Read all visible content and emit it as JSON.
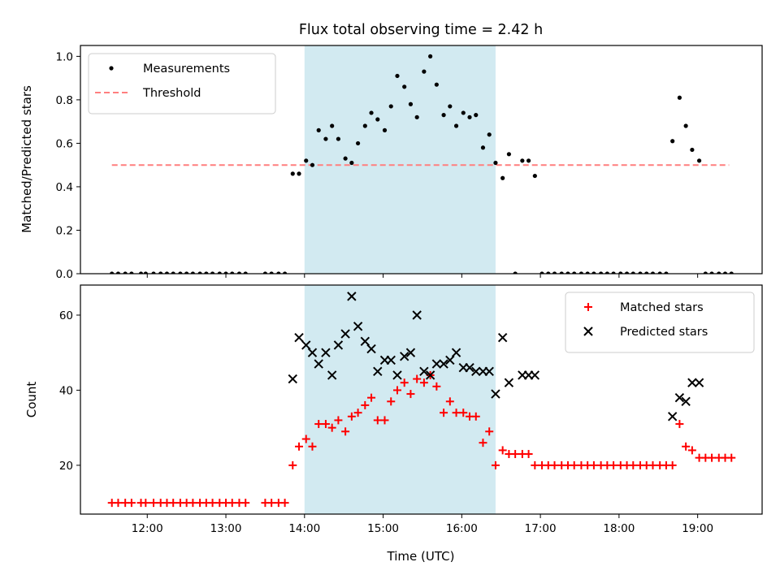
{
  "chart_data": [
    {
      "type": "scatter",
      "title": "Flux total observing time = 2.42 h",
      "xlabel": "",
      "ylabel": "Matched/Predicted stars",
      "xlim": [
        11.15,
        19.82
      ],
      "ylim": [
        0.0,
        1.05
      ],
      "yticks": [
        0.0,
        0.2,
        0.4,
        0.6,
        0.8,
        1.0
      ],
      "ytick_labels": [
        "0.0",
        "0.2",
        "0.4",
        "0.6",
        "0.8",
        "1.0"
      ],
      "xticks": [
        12,
        13,
        14,
        15,
        16,
        17,
        18,
        19
      ],
      "shaded_region": [
        14.0,
        16.43
      ],
      "shaded_color": "#add8e6",
      "threshold": {
        "y": 0.5,
        "x_range": [
          11.55,
          19.4
        ],
        "color": "#ff7f7f"
      },
      "legend": {
        "position": "upper left",
        "entries": [
          "Measurements",
          "Threshold"
        ]
      },
      "series": [
        {
          "name": "Measurements",
          "color": "#000000",
          "marker": "dot",
          "x": [
            11.55,
            11.63,
            11.72,
            11.8,
            11.92,
            11.98,
            12.08,
            12.17,
            12.25,
            12.33,
            12.42,
            12.5,
            12.58,
            12.67,
            12.75,
            12.83,
            12.92,
            13.0,
            13.08,
            13.17,
            13.25,
            13.5,
            13.58,
            13.67,
            13.75,
            13.85,
            13.93,
            14.02,
            14.1,
            14.18,
            14.27,
            14.35,
            14.43,
            14.52,
            14.6,
            14.68,
            14.77,
            14.85,
            14.93,
            15.02,
            15.1,
            15.18,
            15.27,
            15.35,
            15.43,
            15.52,
            15.6,
            15.68,
            15.77,
            15.85,
            15.93,
            16.02,
            16.1,
            16.18,
            16.27,
            16.35,
            16.43,
            16.52,
            16.6,
            16.68,
            16.77,
            16.85,
            16.93,
            17.02,
            17.1,
            17.18,
            17.27,
            17.35,
            17.43,
            17.52,
            17.6,
            17.68,
            17.77,
            17.85,
            17.93,
            18.02,
            18.1,
            18.18,
            18.27,
            18.35,
            18.43,
            18.52,
            18.6,
            18.68,
            18.77,
            18.85,
            18.93,
            19.02,
            19.1,
            19.18,
            19.27,
            19.35,
            19.43
          ],
          "y": [
            0.0,
            0.0,
            0.0,
            0.0,
            0.0,
            0.0,
            0.0,
            0.0,
            0.0,
            0.0,
            0.0,
            0.0,
            0.0,
            0.0,
            0.0,
            0.0,
            0.0,
            0.0,
            0.0,
            0.0,
            0.0,
            0.0,
            0.0,
            0.0,
            0.0,
            0.46,
            0.46,
            0.52,
            0.5,
            0.66,
            0.62,
            0.68,
            0.62,
            0.53,
            0.51,
            0.6,
            0.68,
            0.74,
            0.71,
            0.66,
            0.77,
            0.91,
            0.86,
            0.78,
            0.72,
            0.93,
            1.0,
            0.87,
            0.73,
            0.77,
            0.68,
            0.74,
            0.72,
            0.73,
            0.58,
            0.64,
            0.51,
            0.44,
            0.55,
            0.0,
            0.52,
            0.52,
            0.45,
            0.0,
            0.0,
            0.0,
            0.0,
            0.0,
            0.0,
            0.0,
            0.0,
            0.0,
            0.0,
            0.0,
            0.0,
            0.0,
            0.0,
            0.0,
            0.0,
            0.0,
            0.0,
            0.0,
            0.0,
            0.61,
            0.81,
            0.68,
            0.57,
            0.52,
            0.0,
            0.0,
            0.0,
            0.0,
            0.0
          ]
        }
      ]
    },
    {
      "type": "scatter",
      "title": "",
      "xlabel": "Time (UTC)",
      "ylabel": "Count",
      "xlim": [
        11.15,
        19.82
      ],
      "ylim": [
        7.0,
        68.0
      ],
      "yticks": [
        20,
        40,
        60
      ],
      "ytick_labels": [
        "20",
        "40",
        "60"
      ],
      "xticks": [
        12,
        13,
        14,
        15,
        16,
        17,
        18,
        19
      ],
      "xtick_labels": [
        "12:00",
        "13:00",
        "14:00",
        "15:00",
        "16:00",
        "17:00",
        "18:00",
        "19:00"
      ],
      "shaded_region": [
        14.0,
        16.43
      ],
      "shaded_color": "#add8e6",
      "legend": {
        "position": "upper right",
        "entries": [
          "Matched stars",
          "Predicted stars"
        ]
      },
      "series": [
        {
          "name": "Matched stars",
          "color": "#ff0000",
          "marker": "plus",
          "x": [
            11.55,
            11.63,
            11.72,
            11.8,
            11.92,
            11.98,
            12.08,
            12.17,
            12.25,
            12.33,
            12.42,
            12.5,
            12.58,
            12.67,
            12.75,
            12.83,
            12.92,
            13.0,
            13.08,
            13.17,
            13.25,
            13.5,
            13.58,
            13.67,
            13.75,
            13.85,
            13.93,
            14.02,
            14.1,
            14.18,
            14.27,
            14.35,
            14.43,
            14.52,
            14.6,
            14.68,
            14.77,
            14.85,
            14.93,
            15.02,
            15.1,
            15.18,
            15.27,
            15.35,
            15.43,
            15.52,
            15.6,
            15.68,
            15.77,
            15.85,
            15.93,
            16.02,
            16.1,
            16.18,
            16.27,
            16.35,
            16.43,
            16.52,
            16.6,
            16.68,
            16.77,
            16.85,
            16.93,
            17.02,
            17.1,
            17.18,
            17.27,
            17.35,
            17.43,
            17.52,
            17.6,
            17.68,
            17.77,
            17.85,
            17.93,
            18.02,
            18.1,
            18.18,
            18.27,
            18.35,
            18.43,
            18.52,
            18.6,
            18.68,
            18.77,
            18.85,
            18.93,
            19.02,
            19.1,
            19.18,
            19.27,
            19.35,
            19.43
          ],
          "y": [
            10,
            10,
            10,
            10,
            10,
            10,
            10,
            10,
            10,
            10,
            10,
            10,
            10,
            10,
            10,
            10,
            10,
            10,
            10,
            10,
            10,
            10,
            10,
            10,
            10,
            20,
            25,
            27,
            25,
            31,
            31,
            30,
            32,
            29,
            33,
            34,
            36,
            38,
            32,
            32,
            37,
            40,
            42,
            39,
            43,
            42,
            44,
            41,
            34,
            37,
            34,
            34,
            33,
            33,
            26,
            29,
            20,
            24,
            23,
            23,
            23,
            23,
            20,
            20,
            20,
            20,
            20,
            20,
            20,
            20,
            20,
            20,
            20,
            20,
            20,
            20,
            20,
            20,
            20,
            20,
            20,
            20,
            20,
            20,
            31,
            25,
            24,
            22,
            22,
            22,
            22,
            22,
            22
          ]
        },
        {
          "name": "Predicted stars",
          "color": "#000000",
          "marker": "x",
          "x": [
            13.85,
            13.93,
            14.02,
            14.1,
            14.18,
            14.27,
            14.35,
            14.43,
            14.52,
            14.6,
            14.68,
            14.77,
            14.85,
            14.93,
            15.02,
            15.1,
            15.18,
            15.27,
            15.35,
            15.43,
            15.52,
            15.6,
            15.68,
            15.77,
            15.85,
            15.93,
            16.02,
            16.1,
            16.18,
            16.27,
            16.35,
            16.43,
            16.52,
            16.6,
            16.77,
            16.85,
            16.93,
            18.68,
            18.77,
            18.85,
            18.93,
            19.02
          ],
          "y": [
            43,
            54,
            52,
            50,
            47,
            50,
            44,
            52,
            55,
            65,
            57,
            53,
            51,
            45,
            48,
            48,
            44,
            49,
            50,
            60,
            45,
            44,
            47,
            47,
            48,
            50,
            46,
            46,
            45,
            45,
            45,
            39,
            54,
            42,
            44,
            44,
            44,
            33,
            38,
            37,
            42,
            42
          ]
        }
      ]
    }
  ]
}
